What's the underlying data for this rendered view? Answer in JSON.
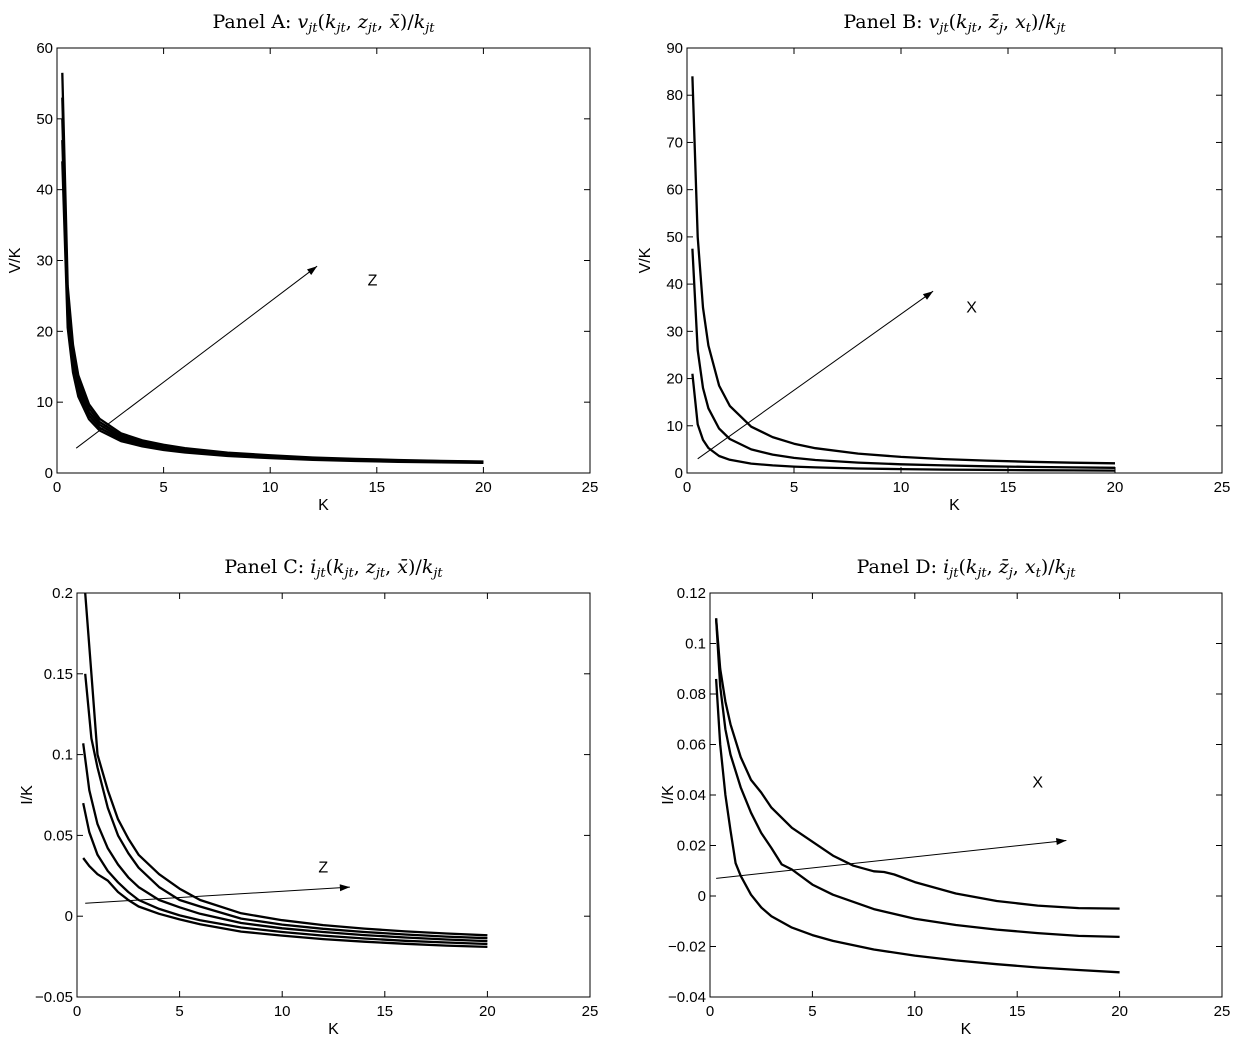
{
  "chart_data": [
    {
      "type": "line",
      "title": "Panel A: v_jt(k_jt, z_jt, x̄)/k_jt",
      "title_parts": {
        "prefix": "Panel A: ",
        "math": "v_{jt}(k_{jt}, z_{jt}, \\bar{x})/k_{jt}"
      },
      "xlabel": "K",
      "ylabel": "V/K",
      "xlim": [
        0,
        25
      ],
      "ylim": [
        0,
        60
      ],
      "xticks": [
        "0",
        "5",
        "10",
        "15",
        "20",
        "25"
      ],
      "yticks": [
        "0",
        "10",
        "20",
        "30",
        "40",
        "50",
        "60"
      ],
      "annotation": {
        "text": "Z",
        "x": 14.8,
        "y": 26.5
      },
      "arrow": {
        "from": [
          0.9,
          3.5
        ],
        "to": [
          12.2,
          29.2
        ]
      },
      "series": [
        {
          "x": [
            0.25,
            0.5,
            0.75,
            1,
            1.5,
            2,
            3,
            4,
            5,
            6,
            8,
            10,
            12,
            14,
            16,
            18,
            20
          ],
          "y": [
            44,
            20.5,
            14.2,
            10.8,
            7.6,
            6.0,
            4.5,
            3.75,
            3.25,
            2.9,
            2.4,
            2.1,
            1.85,
            1.7,
            1.58,
            1.49,
            1.42
          ]
        },
        {
          "x": [
            0.25,
            0.5,
            0.75,
            1,
            1.5,
            2,
            3,
            4,
            5,
            6,
            8,
            10,
            12,
            14,
            16,
            18,
            20
          ],
          "y": [
            47,
            21.8,
            15.0,
            11.5,
            8.1,
            6.4,
            4.75,
            3.95,
            3.42,
            3.05,
            2.52,
            2.2,
            1.94,
            1.78,
            1.65,
            1.55,
            1.48
          ]
        },
        {
          "x": [
            0.25,
            0.5,
            0.75,
            1,
            1.5,
            2,
            3,
            4,
            5,
            6,
            8,
            10,
            12,
            14,
            16,
            18,
            20
          ],
          "y": [
            50,
            23.3,
            16.0,
            12.2,
            8.6,
            6.8,
            5.0,
            4.15,
            3.6,
            3.2,
            2.63,
            2.3,
            2.02,
            1.85,
            1.71,
            1.61,
            1.53
          ]
        },
        {
          "x": [
            0.25,
            0.5,
            0.75,
            1,
            1.5,
            2,
            3,
            4,
            5,
            6,
            8,
            10,
            12,
            14,
            16,
            18,
            20
          ],
          "y": [
            53,
            24.8,
            17.0,
            13.0,
            9.15,
            7.2,
            5.3,
            4.38,
            3.8,
            3.36,
            2.76,
            2.4,
            2.1,
            1.92,
            1.77,
            1.66,
            1.58
          ]
        },
        {
          "x": [
            0.25,
            0.5,
            0.75,
            1,
            1.5,
            2,
            3,
            4,
            5,
            6,
            8,
            10,
            12,
            14,
            16,
            18,
            20
          ],
          "y": [
            56.5,
            26.4,
            18.1,
            13.8,
            9.7,
            7.65,
            5.6,
            4.6,
            4.0,
            3.52,
            2.88,
            2.5,
            2.19,
            1.99,
            1.83,
            1.71,
            1.62
          ]
        }
      ]
    },
    {
      "type": "line",
      "title": "Panel B: v_jt(k_jt, z̄_j, x_t)/k_jt",
      "title_parts": {
        "prefix": "Panel B: ",
        "math": "v_{jt}(k_{jt}, \\bar{z}_{j}, x_{t})/k_{jt}"
      },
      "xlabel": "K",
      "ylabel": "V/K",
      "xlim": [
        0,
        25
      ],
      "ylim": [
        0,
        90
      ],
      "xticks": [
        "0",
        "5",
        "10",
        "15",
        "20",
        "25"
      ],
      "yticks": [
        "0",
        "10",
        "20",
        "30",
        "40",
        "50",
        "60",
        "70",
        "80",
        "90"
      ],
      "annotation": {
        "text": "X",
        "x": 13.3,
        "y": 34
      },
      "arrow": {
        "from": [
          0.5,
          3
        ],
        "to": [
          11.5,
          38.5
        ]
      },
      "series": [
        {
          "x": [
            0.25,
            0.5,
            0.75,
            1,
            1.5,
            2,
            3,
            4,
            5,
            6,
            8,
            10,
            12,
            14,
            16,
            18,
            20
          ],
          "y": [
            21,
            10.3,
            7.0,
            5.3,
            3.6,
            2.8,
            2.0,
            1.6,
            1.35,
            1.18,
            0.95,
            0.82,
            0.72,
            0.65,
            0.59,
            0.55,
            0.51
          ]
        },
        {
          "x": [
            0.25,
            0.5,
            0.75,
            1,
            1.5,
            2,
            3,
            4,
            5,
            6,
            8,
            10,
            12,
            14,
            16,
            18,
            20
          ],
          "y": [
            47.5,
            26,
            18,
            13.7,
            9.4,
            7.2,
            5.0,
            3.9,
            3.2,
            2.75,
            2.2,
            1.85,
            1.6,
            1.42,
            1.29,
            1.18,
            1.1
          ]
        },
        {
          "x": [
            0.25,
            0.5,
            0.75,
            1,
            1.5,
            2,
            3,
            4,
            5,
            6,
            8,
            10,
            12,
            14,
            16,
            18,
            20
          ],
          "y": [
            84,
            50,
            35,
            27,
            18.5,
            14.2,
            9.8,
            7.6,
            6.2,
            5.25,
            4.1,
            3.4,
            2.95,
            2.62,
            2.38,
            2.19,
            2.05
          ]
        }
      ]
    },
    {
      "type": "line",
      "title": "Panel C: i_jt(k_jt, z_jt, x̄)/k_jt",
      "title_parts": {
        "prefix": "Panel C: ",
        "math": "i_{jt}(k_{jt}, z_{jt}, \\bar{x})/k_{jt}"
      },
      "xlabel": "K",
      "ylabel": "I/K",
      "xlim": [
        0,
        25
      ],
      "ylim": [
        -0.05,
        0.2
      ],
      "xticks": [
        "0",
        "5",
        "10",
        "15",
        "20",
        "25"
      ],
      "yticks": [
        "−0.05",
        "0",
        "0.05",
        "0.1",
        "0.15",
        "0.2"
      ],
      "annotation": {
        "text": "Z",
        "x": 12,
        "y": 0.027
      },
      "arrow": {
        "from": [
          0.4,
          0.008
        ],
        "to": [
          13.3,
          0.018
        ]
      },
      "series": [
        {
          "x": [
            0.3,
            0.6,
            1,
            1.5,
            2,
            2.5,
            3,
            4,
            5,
            6,
            8,
            10,
            12,
            14,
            16,
            18,
            20
          ],
          "y": [
            0.036,
            0.031,
            0.026,
            0.022,
            0.015,
            0.01,
            0.006,
            0.0015,
            -0.002,
            -0.005,
            -0.0095,
            -0.012,
            -0.0142,
            -0.0158,
            -0.0171,
            -0.0182,
            -0.019
          ]
        },
        {
          "x": [
            0.3,
            0.6,
            1,
            1.5,
            2,
            2.5,
            3,
            4,
            5,
            6,
            8,
            10,
            12,
            14,
            16,
            18,
            20
          ],
          "y": [
            0.07,
            0.052,
            0.038,
            0.028,
            0.021,
            0.015,
            0.01,
            0.0045,
            0.0005,
            -0.0025,
            -0.007,
            -0.0098,
            -0.012,
            -0.0138,
            -0.0152,
            -0.0163,
            -0.0172
          ]
        },
        {
          "x": [
            0.3,
            0.6,
            1,
            1.5,
            2,
            2.5,
            3,
            4,
            5,
            6,
            8,
            10,
            12,
            14,
            16,
            18,
            20
          ],
          "y": [
            0.107,
            0.078,
            0.057,
            0.042,
            0.032,
            0.024,
            0.018,
            0.01,
            0.0055,
            0.0015,
            -0.0042,
            -0.0075,
            -0.0098,
            -0.0117,
            -0.0132,
            -0.0144,
            -0.0154
          ]
        },
        {
          "x": [
            0.4,
            0.7,
            1,
            1.5,
            2,
            2.5,
            3,
            4,
            5,
            6,
            8,
            10,
            12,
            14,
            16,
            18,
            20
          ],
          "y": [
            0.15,
            0.11,
            0.092,
            0.067,
            0.05,
            0.039,
            0.03,
            0.018,
            0.01,
            0.006,
            -0.0015,
            -0.0052,
            -0.0078,
            -0.0098,
            -0.0113,
            -0.0126,
            -0.0136
          ]
        },
        {
          "x": [
            0.4,
            0.7,
            1,
            1.5,
            2,
            2.5,
            3,
            4,
            5,
            6,
            8,
            10,
            12,
            14,
            16,
            18,
            20
          ],
          "y": [
            0.2,
            0.15,
            0.1,
            0.078,
            0.06,
            0.048,
            0.038,
            0.026,
            0.017,
            0.01,
            0.0018,
            -0.0025,
            -0.0055,
            -0.0077,
            -0.0094,
            -0.0107,
            -0.0118
          ]
        }
      ]
    },
    {
      "type": "line",
      "title": "Panel D: i_jt(k_jt, z̄_j, x_t)/k_jt",
      "title_parts": {
        "prefix": "Panel D: ",
        "math": "i_{jt}(k_{jt}, \\bar{z}_{j}, x_{t})/k_{jt}"
      },
      "xlabel": "K",
      "ylabel": "I/K",
      "xlim": [
        0,
        25
      ],
      "ylim": [
        -0.04,
        0.12
      ],
      "xticks": [
        "0",
        "5",
        "10",
        "15",
        "20",
        "25"
      ],
      "yticks": [
        "−0.04",
        "−0.02",
        "0",
        "0.02",
        "0.04",
        "0.06",
        "0.08",
        "0.1",
        "0.12"
      ],
      "annotation": {
        "text": "X",
        "x": 16,
        "y": 0.043
      },
      "arrow": {
        "from": [
          0.3,
          0.007
        ],
        "to": [
          17.4,
          0.022
        ]
      },
      "series": [
        {
          "x": [
            0.3,
            0.5,
            0.75,
            1,
            1.25,
            1.5,
            2,
            2.5,
            3,
            4,
            5,
            6,
            8,
            10,
            12,
            14,
            16,
            18,
            20
          ],
          "y": [
            0.086,
            0.06,
            0.04,
            0.026,
            0.013,
            0.008,
            0.0005,
            -0.0045,
            -0.008,
            -0.0125,
            -0.0155,
            -0.0178,
            -0.0212,
            -0.0236,
            -0.0255,
            -0.027,
            -0.0283,
            -0.0293,
            -0.0302
          ]
        },
        {
          "x": [
            0.3,
            0.5,
            0.75,
            1,
            1.5,
            2,
            2.5,
            3,
            3.5,
            4,
            5,
            6,
            8,
            10,
            12,
            14,
            16,
            18,
            20
          ],
          "y": [
            0.11,
            0.083,
            0.066,
            0.056,
            0.043,
            0.033,
            0.025,
            0.019,
            0.0125,
            0.0105,
            0.0045,
            0.0005,
            -0.0052,
            -0.009,
            -0.0115,
            -0.0133,
            -0.0147,
            -0.0158,
            -0.0162
          ]
        },
        {
          "x": [
            0.3,
            0.5,
            0.75,
            1,
            1.5,
            2,
            2.5,
            3,
            4,
            5,
            6,
            7,
            8,
            8.5,
            9,
            10,
            12,
            14,
            16,
            18,
            20
          ],
          "y": [
            0.11,
            0.09,
            0.077,
            0.068,
            0.055,
            0.046,
            0.041,
            0.035,
            0.027,
            0.0215,
            0.016,
            0.012,
            0.0098,
            0.0095,
            0.0085,
            0.0055,
            0.001,
            -0.002,
            -0.0038,
            -0.0048,
            -0.005
          ]
        }
      ]
    }
  ]
}
